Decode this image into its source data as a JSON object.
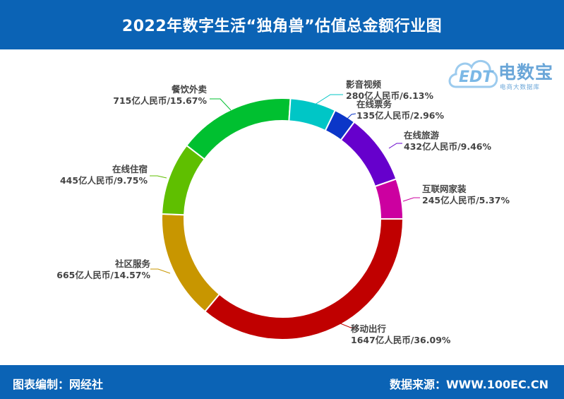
{
  "header": {
    "title": "2022年数字生活“独角兽”估值总金额行业图"
  },
  "footer": {
    "left": "图表编制：网经社",
    "right": "数据来源：WWW.100EC.CN"
  },
  "logo": {
    "name": "电数宝",
    "subtitle": "电商大数据库",
    "mark": "EDT"
  },
  "colors": {
    "header_bg": "#0b63b5",
    "label_text": "#444444"
  },
  "chart_data": {
    "type": "pie",
    "donut": true,
    "legend": "none",
    "unit": "亿人民币",
    "slices": [
      {
        "name": "移动出行",
        "value": 1647,
        "percent": 36.09,
        "color": "#c00000",
        "label": "1647亿人民币/36.09%"
      },
      {
        "name": "社区服务",
        "value": 665,
        "percent": 14.57,
        "color": "#c89600",
        "label": "665亿人民币/14.57%"
      },
      {
        "name": "在线住宿",
        "value": 445,
        "percent": 9.75,
        "color": "#5fbf00",
        "label": "445亿人民币/9.75%"
      },
      {
        "name": "餐饮外卖",
        "value": 715,
        "percent": 15.67,
        "color": "#00c030",
        "label": "715亿人民币/15.67%"
      },
      {
        "name": "影音视频",
        "value": 280,
        "percent": 6.13,
        "color": "#00c6c6",
        "label": "280亿人民币/6.13%"
      },
      {
        "name": "在线票务",
        "value": 135,
        "percent": 2.96,
        "color": "#0b36c8",
        "label": "135亿人民币/2.96%"
      },
      {
        "name": "在线旅游",
        "value": 432,
        "percent": 9.46,
        "color": "#6600cc",
        "label": "432亿人民币/9.46%"
      },
      {
        "name": "互联网家装",
        "value": 245,
        "percent": 5.37,
        "color": "#cc00a0",
        "label": "245亿人民币/5.37%"
      }
    ]
  }
}
